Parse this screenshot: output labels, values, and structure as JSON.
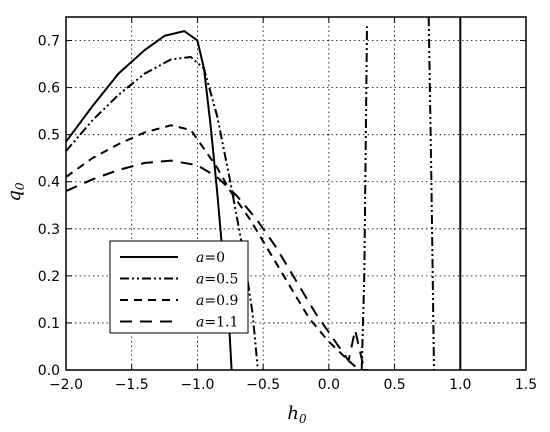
{
  "chart_data": {
    "type": "line",
    "title": "",
    "xlabel": "h",
    "xlabel_sub": "0",
    "ylabel": "q",
    "ylabel_sub": "0",
    "xlim": [
      -2.0,
      1.5
    ],
    "ylim": [
      0.0,
      0.75
    ],
    "grid": true,
    "legend_position": "lower-left",
    "xticks": [
      "−2.0",
      "−1.5",
      "−1.0",
      "−0.5",
      "0.0",
      "0.5",
      "1.0",
      "1.5"
    ],
    "xtick_values": [
      -2.0,
      -1.5,
      -1.0,
      -0.5,
      0.0,
      0.5,
      1.0,
      1.5
    ],
    "yticks": [
      "0.0",
      "0.1",
      "0.2",
      "0.3",
      "0.4",
      "0.5",
      "0.6",
      "0.7"
    ],
    "ytick_values": [
      0.0,
      0.1,
      0.2,
      0.3,
      0.4,
      0.5,
      0.6,
      0.7
    ],
    "series": [
      {
        "name": "a=0",
        "label_var": "a",
        "label_val": "0",
        "style": "solid",
        "segments": [
          [
            [
              -2.0,
              0.485
            ],
            [
              -1.8,
              0.56
            ],
            [
              -1.6,
              0.63
            ],
            [
              -1.4,
              0.68
            ],
            [
              -1.25,
              0.71
            ],
            [
              -1.1,
              0.72
            ],
            [
              -1.0,
              0.7
            ],
            [
              -0.95,
              0.64
            ],
            [
              -0.9,
              0.52
            ],
            [
              -0.85,
              0.38
            ],
            [
              -0.8,
              0.22
            ],
            [
              -0.76,
              0.1
            ],
            [
              -0.74,
              0.0
            ]
          ],
          [
            [
              1.0,
              0.0
            ],
            [
              1.0,
              0.75
            ]
          ]
        ]
      },
      {
        "name": "a=0.5",
        "label_var": "a",
        "label_val": "0.5",
        "style": "dashdot",
        "segments": [
          [
            [
              -2.0,
              0.465
            ],
            [
              -1.8,
              0.53
            ],
            [
              -1.6,
              0.585
            ],
            [
              -1.4,
              0.63
            ],
            [
              -1.2,
              0.66
            ],
            [
              -1.05,
              0.665
            ],
            [
              -0.95,
              0.64
            ],
            [
              -0.85,
              0.54
            ],
            [
              -0.75,
              0.4
            ],
            [
              -0.65,
              0.25
            ],
            [
              -0.58,
              0.12
            ],
            [
              -0.54,
              0.0
            ]
          ],
          [
            [
              0.25,
              0.0
            ],
            [
              0.27,
              0.2
            ],
            [
              0.29,
              0.73
            ]
          ],
          [
            [
              0.76,
              0.75
            ],
            [
              0.78,
              0.4
            ],
            [
              0.8,
              0.0
            ]
          ]
        ]
      },
      {
        "name": "a=0.9",
        "label_var": "a",
        "label_val": "0.9",
        "style": "dashed",
        "segments": [
          [
            [
              -2.0,
              0.41
            ],
            [
              -1.8,
              0.45
            ],
            [
              -1.6,
              0.48
            ],
            [
              -1.4,
              0.505
            ],
            [
              -1.2,
              0.52
            ],
            [
              -1.05,
              0.51
            ],
            [
              -0.95,
              0.47
            ],
            [
              -0.85,
              0.43
            ],
            [
              -0.75,
              0.38
            ],
            [
              -0.6,
              0.32
            ],
            [
              -0.45,
              0.25
            ],
            [
              -0.3,
              0.18
            ],
            [
              -0.15,
              0.11
            ],
            [
              0.0,
              0.06
            ],
            [
              0.15,
              0.02
            ],
            [
              0.23,
              0.0
            ],
            [
              0.3,
              0.0
            ]
          ]
        ]
      },
      {
        "name": "a=1.1",
        "label_var": "a",
        "label_val": "1.1",
        "style": "longdash",
        "segments": [
          [
            [
              -2.0,
              0.38
            ],
            [
              -1.8,
              0.405
            ],
            [
              -1.6,
              0.425
            ],
            [
              -1.4,
              0.44
            ],
            [
              -1.2,
              0.445
            ],
            [
              -1.0,
              0.435
            ],
            [
              -0.85,
              0.41
            ],
            [
              -0.7,
              0.37
            ],
            [
              -0.55,
              0.32
            ],
            [
              -0.4,
              0.26
            ],
            [
              -0.25,
              0.19
            ],
            [
              -0.1,
              0.12
            ],
            [
              0.0,
              0.08
            ],
            [
              0.1,
              0.04
            ],
            [
              0.15,
              0.02
            ],
            [
              0.2,
              0.085
            ],
            [
              0.27,
              0.0
            ]
          ]
        ]
      }
    ]
  }
}
